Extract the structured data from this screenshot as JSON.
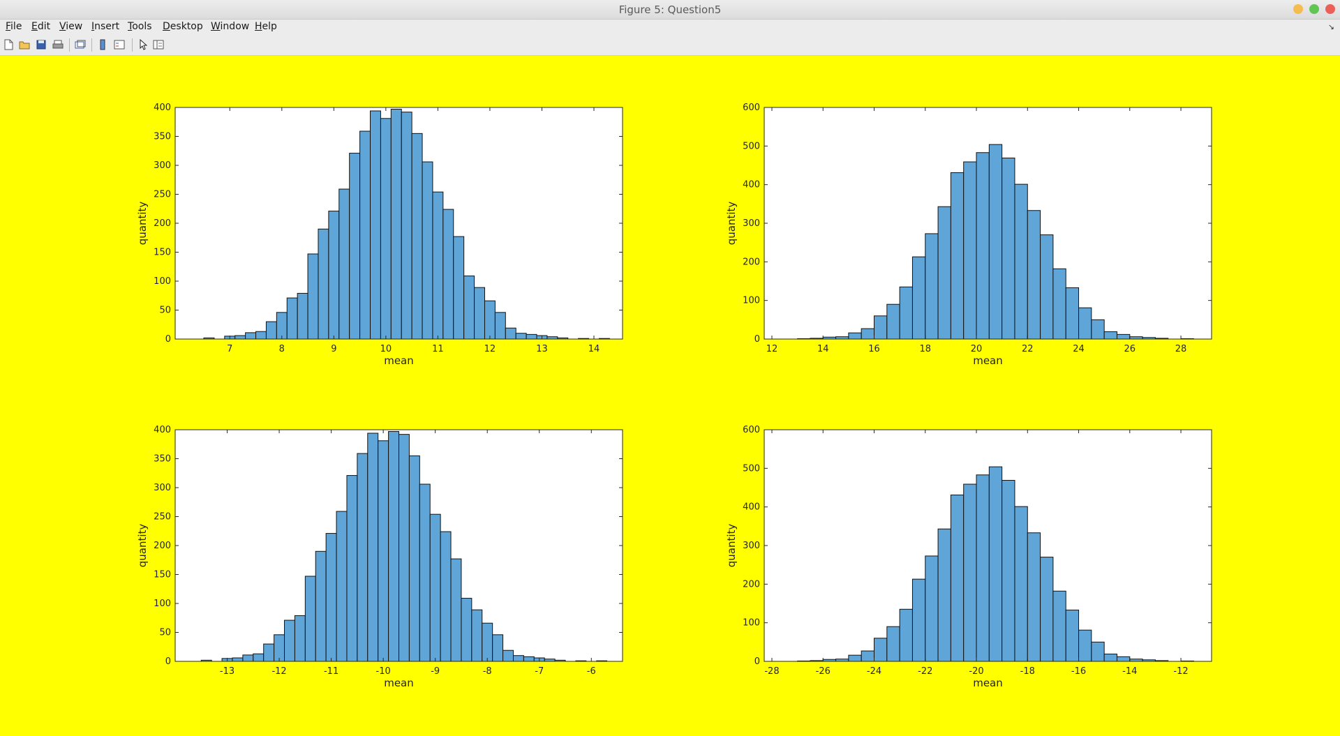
{
  "window": {
    "title": "Figure 5: Question5",
    "controls": [
      "minimize-icon",
      "maximize-icon",
      "close-icon"
    ],
    "colors": {
      "minimize": "#f5bd4f",
      "maximize": "#61c554",
      "close": "#ec5f58"
    }
  },
  "menu": [
    "File",
    "Edit",
    "View",
    "Insert",
    "Tools",
    "Desktop",
    "Window",
    "Help"
  ],
  "menu_arrow": "↘",
  "toolbar": {
    "icons": [
      "new-figure-icon",
      "open-file-icon",
      "save-icon",
      "print-icon",
      "link-plot-icon",
      "colorbar-icon",
      "legend-icon",
      "edit-plot-arrow-icon",
      "property-inspector-icon"
    ]
  },
  "figure": {
    "background": "#ffff00",
    "bar_color": "#5fa5d8",
    "edge_color": "#111111"
  },
  "chart_data": [
    {
      "type": "bar",
      "xlabel": "mean",
      "ylabel": "quantity",
      "xlim": [
        5.95,
        14.55
      ],
      "ylim": [
        0,
        400
      ],
      "xticks": [
        7,
        8,
        9,
        10,
        11,
        12,
        13,
        14
      ],
      "yticks": [
        0,
        50,
        100,
        150,
        200,
        250,
        300,
        350,
        400
      ],
      "bin_start": 6.3,
      "bin_width": 0.2,
      "values": [
        0,
        2,
        0,
        5,
        6,
        11,
        13,
        30,
        46,
        71,
        79,
        147,
        190,
        221,
        259,
        321,
        359,
        394,
        381,
        397,
        392,
        355,
        306,
        254,
        224,
        177,
        109,
        89,
        66,
        46,
        19,
        10,
        8,
        6,
        4,
        2,
        0,
        1,
        0,
        1
      ]
    },
    {
      "type": "bar",
      "xlabel": "mean",
      "ylabel": "quantity",
      "xlim": [
        11.7,
        29.2
      ],
      "ylim": [
        0,
        600
      ],
      "xticks": [
        12,
        14,
        16,
        18,
        20,
        22,
        24,
        26,
        28
      ],
      "yticks": [
        0,
        100,
        200,
        300,
        400,
        500,
        600
      ],
      "bin_start": 12.5,
      "bin_width": 0.5,
      "values": [
        0,
        1,
        2,
        5,
        6,
        16,
        27,
        60,
        90,
        135,
        213,
        273,
        343,
        431,
        459,
        483,
        504,
        469,
        401,
        333,
        270,
        182,
        133,
        81,
        50,
        19,
        12,
        6,
        4,
        2,
        0,
        1
      ]
    },
    {
      "type": "bar",
      "xlabel": "mean",
      "ylabel": "quantity",
      "xlim": [
        -14.0,
        -5.4
      ],
      "ylim": [
        0,
        400
      ],
      "xticks": [
        -13,
        -12,
        -11,
        -10,
        -9,
        -8,
        -7,
        -6
      ],
      "yticks": [
        0,
        50,
        100,
        150,
        200,
        250,
        300,
        350,
        400
      ],
      "bin_start": -13.7,
      "bin_width": 0.2,
      "values": [
        0,
        2,
        0,
        5,
        6,
        11,
        13,
        30,
        46,
        71,
        79,
        147,
        190,
        221,
        259,
        321,
        359,
        394,
        381,
        397,
        392,
        355,
        306,
        254,
        224,
        177,
        109,
        89,
        66,
        46,
        19,
        10,
        8,
        6,
        4,
        2,
        0,
        1,
        0,
        1
      ]
    },
    {
      "type": "bar",
      "xlabel": "mean",
      "ylabel": "quantity",
      "xlim": [
        -28.3,
        -10.8
      ],
      "ylim": [
        0,
        600
      ],
      "xticks": [
        -28,
        -26,
        -24,
        -22,
        -20,
        -18,
        -16,
        -14,
        -12
      ],
      "yticks": [
        0,
        100,
        200,
        300,
        400,
        500,
        600
      ],
      "bin_start": -27.5,
      "bin_width": 0.5,
      "values": [
        0,
        1,
        2,
        5,
        6,
        16,
        27,
        60,
        90,
        135,
        213,
        273,
        343,
        431,
        459,
        483,
        504,
        469,
        401,
        333,
        270,
        182,
        133,
        81,
        50,
        19,
        12,
        6,
        4,
        2,
        0,
        1
      ]
    }
  ]
}
